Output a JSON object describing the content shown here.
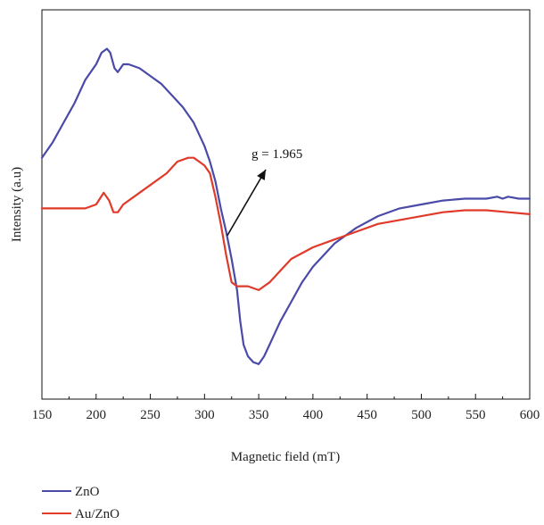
{
  "chart_data": {
    "type": "line",
    "title": "",
    "xlabel": "Magnetic field (mT)",
    "ylabel": "Intensity (a.u)",
    "xlim": [
      150,
      600
    ],
    "x_ticks": [
      "150",
      "200",
      "250",
      "300",
      "350",
      "400",
      "450",
      "500",
      "550",
      "600"
    ],
    "y_ticks_shown": false,
    "grid": false,
    "legend_position": "bottom-left",
    "annotation": {
      "text": "g = 1.965",
      "points_to": {
        "x": 321,
        "y": 0.42
      }
    },
    "series": [
      {
        "name": "ZnO",
        "color": "#4a4aa8",
        "x": [
          150,
          160,
          170,
          180,
          190,
          200,
          205,
          210,
          213,
          217,
          220,
          225,
          230,
          240,
          250,
          260,
          270,
          280,
          290,
          300,
          305,
          310,
          315,
          320,
          325,
          330,
          333,
          336,
          340,
          345,
          350,
          355,
          360,
          365,
          370,
          380,
          390,
          400,
          420,
          440,
          460,
          480,
          500,
          520,
          540,
          560,
          570,
          575,
          580,
          590,
          600
        ],
        "y": [
          0.62,
          0.66,
          0.71,
          0.76,
          0.82,
          0.86,
          0.89,
          0.9,
          0.89,
          0.85,
          0.84,
          0.86,
          0.86,
          0.85,
          0.83,
          0.81,
          0.78,
          0.75,
          0.71,
          0.65,
          0.61,
          0.56,
          0.49,
          0.43,
          0.36,
          0.28,
          0.2,
          0.14,
          0.11,
          0.095,
          0.09,
          0.11,
          0.14,
          0.17,
          0.2,
          0.25,
          0.3,
          0.34,
          0.4,
          0.44,
          0.47,
          0.49,
          0.5,
          0.51,
          0.515,
          0.515,
          0.52,
          0.515,
          0.52,
          0.515,
          0.515
        ]
      },
      {
        "name": "Au/ZnO",
        "color": "#e03a2a",
        "x": [
          150,
          170,
          190,
          200,
          207,
          212,
          216,
          220,
          225,
          235,
          250,
          265,
          275,
          285,
          290,
          295,
          300,
          305,
          310,
          315,
          320,
          325,
          330,
          340,
          350,
          360,
          370,
          380,
          400,
          420,
          440,
          460,
          480,
          500,
          520,
          540,
          560,
          580,
          600
        ],
        "y": [
          0.49,
          0.49,
          0.49,
          0.5,
          0.53,
          0.51,
          0.48,
          0.48,
          0.5,
          0.52,
          0.55,
          0.58,
          0.61,
          0.62,
          0.62,
          0.61,
          0.6,
          0.58,
          0.52,
          0.45,
          0.37,
          0.3,
          0.29,
          0.29,
          0.28,
          0.3,
          0.33,
          0.36,
          0.39,
          0.41,
          0.43,
          0.45,
          0.46,
          0.47,
          0.48,
          0.485,
          0.485,
          0.48,
          0.475
        ]
      }
    ]
  }
}
